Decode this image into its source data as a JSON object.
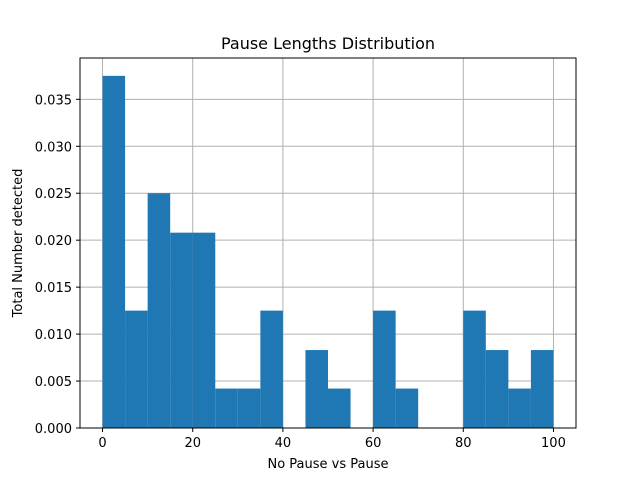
{
  "chart_data": {
    "type": "bar",
    "title": "Pause Lengths Distribution",
    "xlabel": "No Pause vs Pause",
    "ylabel": "Total Number detected",
    "bin_edges": [
      0,
      5,
      10,
      15,
      20,
      25,
      30,
      35,
      40,
      45,
      50,
      55,
      60,
      65,
      70,
      75,
      80,
      85,
      90,
      95,
      100
    ],
    "values": [
      0.0375,
      0.0125,
      0.025,
      0.0208,
      0.0208,
      0.0042,
      0.0042,
      0.0125,
      0.0,
      0.0083,
      0.0042,
      0.0,
      0.0125,
      0.0042,
      0.0,
      0.0,
      0.0125,
      0.0083,
      0.0042,
      0.0083
    ],
    "xlim": [
      -5,
      105
    ],
    "ylim": [
      0,
      0.0394
    ],
    "xticks": [
      0,
      20,
      40,
      60,
      80,
      100
    ],
    "xtick_labels": [
      "0",
      "20",
      "40",
      "60",
      "80",
      "100"
    ],
    "yticks": [
      0,
      0.005,
      0.01,
      0.015,
      0.02,
      0.025,
      0.03,
      0.035
    ],
    "ytick_labels": [
      "0.000",
      "0.005",
      "0.010",
      "0.015",
      "0.020",
      "0.025",
      "0.030",
      "0.035"
    ],
    "grid": true,
    "bar_color": "#1f77b4"
  }
}
